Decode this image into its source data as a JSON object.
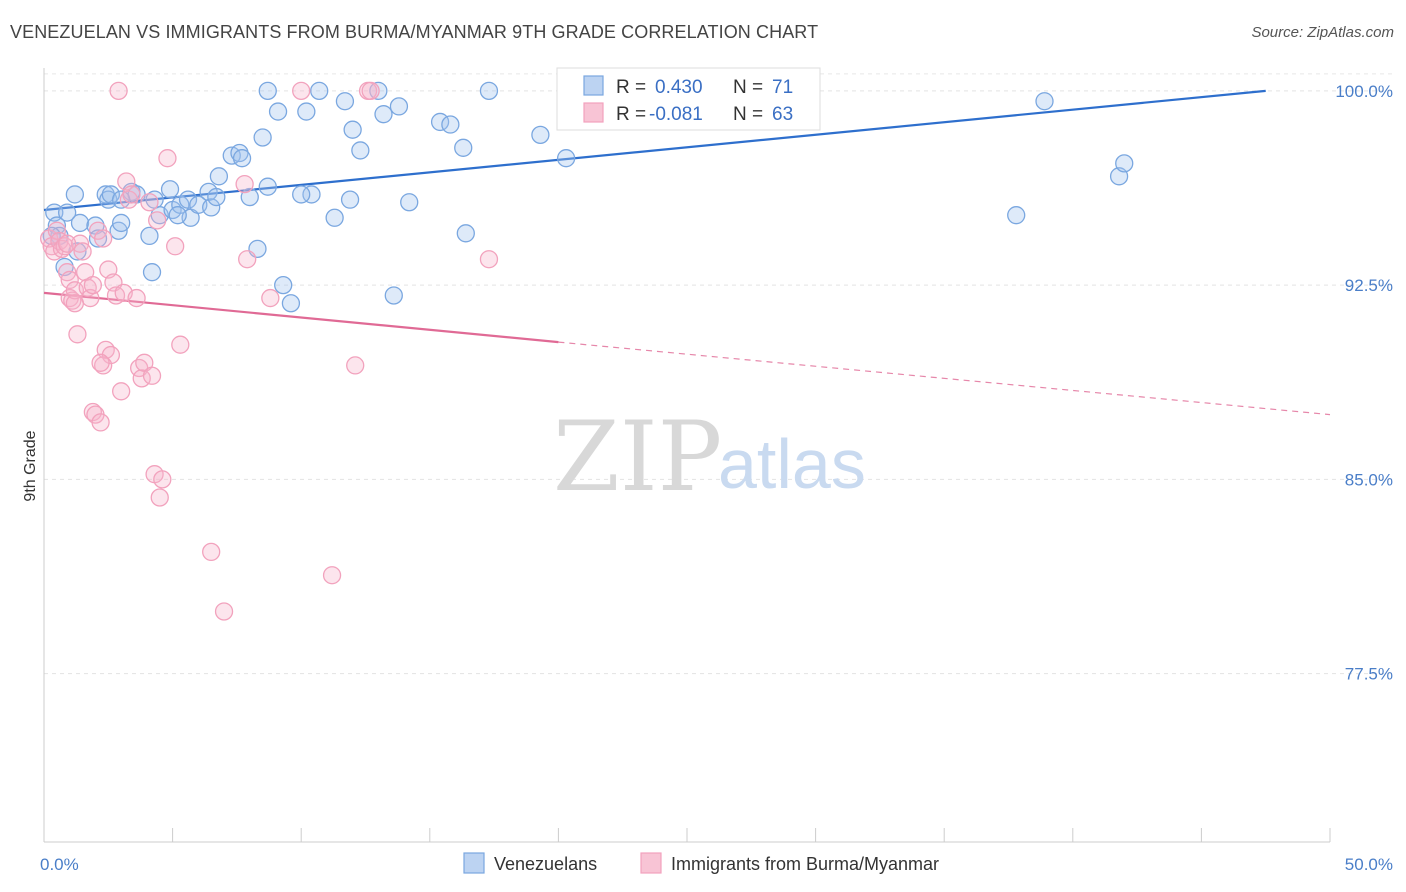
{
  "title": "VENEZUELAN VS IMMIGRANTS FROM BURMA/MYANMAR 9TH GRADE CORRELATION CHART",
  "source": "Source: ZipAtlas.com",
  "watermark": {
    "zip": "ZIP",
    "atlas": "atlas"
  },
  "chart_data": {
    "type": "scatter",
    "title": "VENEZUELAN VS IMMIGRANTS FROM BURMA/MYANMAR 9TH GRADE CORRELATION CHART",
    "xlabel": "",
    "ylabel": "9th Grade",
    "xlim": [
      0,
      50
    ],
    "ylim": [
      71.0,
      101.5
    ],
    "x_tick_labels": [
      "0.0%",
      "50.0%"
    ],
    "y_ticks": [
      77.5,
      85.0,
      92.5,
      100.0
    ],
    "y_tick_labels": [
      "77.5%",
      "85.0%",
      "92.5%",
      "100.0%"
    ],
    "grid": true,
    "legend": {
      "placement": "top-center",
      "rows": [
        {
          "r_label": "R =",
          "r_value": "0.430",
          "n_label": "N =",
          "n_value": "71"
        },
        {
          "r_label": "R =",
          "r_value": "-0.081",
          "n_label": "N =",
          "n_value": "63"
        }
      ]
    },
    "series": [
      {
        "name": "Venezuelans",
        "color": "#7aa7e0",
        "line_color": "#2e6fcd",
        "trend": {
          "x0": 0,
          "y0": 95.4,
          "x1": 47.5,
          "y1": 100.0,
          "dashed_to": null
        },
        "points": [
          [
            0.4,
            95.3
          ],
          [
            0.5,
            94.8
          ],
          [
            0.6,
            94.4
          ],
          [
            0.9,
            95.3
          ],
          [
            1.2,
            96.0
          ],
          [
            0.8,
            93.2
          ],
          [
            1.4,
            94.9
          ],
          [
            1.3,
            93.8
          ],
          [
            2.0,
            94.8
          ],
          [
            2.4,
            96.0
          ],
          [
            2.5,
            95.8
          ],
          [
            2.6,
            96.0
          ],
          [
            2.9,
            94.6
          ],
          [
            3.0,
            94.9
          ],
          [
            3.4,
            96.1
          ],
          [
            3.6,
            96.0
          ],
          [
            4.1,
            94.4
          ],
          [
            4.2,
            93.0
          ],
          [
            4.3,
            95.8
          ],
          [
            4.5,
            95.2
          ],
          [
            4.9,
            96.2
          ],
          [
            5.0,
            95.4
          ],
          [
            5.3,
            95.6
          ],
          [
            5.6,
            95.8
          ],
          [
            5.7,
            95.1
          ],
          [
            6.0,
            95.6
          ],
          [
            6.4,
            96.1
          ],
          [
            6.5,
            95.5
          ],
          [
            6.7,
            95.9
          ],
          [
            6.8,
            96.7
          ],
          [
            7.3,
            97.5
          ],
          [
            7.6,
            97.6
          ],
          [
            7.7,
            97.4
          ],
          [
            8.0,
            95.9
          ],
          [
            8.3,
            93.9
          ],
          [
            8.5,
            98.2
          ],
          [
            8.7,
            96.3
          ],
          [
            8.7,
            100.0
          ],
          [
            9.1,
            99.2
          ],
          [
            9.3,
            92.5
          ],
          [
            9.6,
            91.8
          ],
          [
            10.2,
            99.2
          ],
          [
            10.4,
            96.0
          ],
          [
            10.7,
            100.0
          ],
          [
            11.3,
            95.1
          ],
          [
            11.7,
            99.6
          ],
          [
            11.9,
            95.8
          ],
          [
            12.0,
            98.5
          ],
          [
            12.3,
            97.7
          ],
          [
            13.0,
            100.0
          ],
          [
            13.2,
            99.1
          ],
          [
            13.6,
            92.1
          ],
          [
            13.8,
            99.4
          ],
          [
            14.2,
            95.7
          ],
          [
            15.4,
            98.8
          ],
          [
            15.8,
            98.7
          ],
          [
            16.3,
            97.8
          ],
          [
            16.4,
            94.5
          ],
          [
            17.3,
            100.0
          ],
          [
            19.3,
            98.3
          ],
          [
            20.3,
            97.4
          ],
          [
            22.0,
            100.0
          ],
          [
            37.8,
            95.2
          ],
          [
            38.9,
            99.6
          ],
          [
            41.8,
            96.7
          ],
          [
            42.0,
            97.2
          ],
          [
            0.3,
            94.4
          ],
          [
            2.1,
            94.3
          ],
          [
            5.2,
            95.2
          ],
          [
            10.0,
            96.0
          ],
          [
            3.0,
            95.8
          ]
        ]
      },
      {
        "name": "Immigrants from Burma/Myanmar",
        "color": "#f2a2bd",
        "line_color": "#e06a95",
        "trend": {
          "x0": 0,
          "y0": 92.2,
          "x1": 20.0,
          "y1": 90.3,
          "dashed_to": {
            "x": 50.0,
            "y": 87.5
          }
        },
        "points": [
          [
            0.2,
            94.3
          ],
          [
            0.3,
            94.0
          ],
          [
            0.4,
            93.8
          ],
          [
            0.5,
            94.6
          ],
          [
            0.6,
            94.2
          ],
          [
            0.7,
            93.9
          ],
          [
            0.8,
            94.0
          ],
          [
            0.9,
            93.0
          ],
          [
            1.0,
            92.7
          ],
          [
            1.0,
            92.0
          ],
          [
            1.1,
            91.9
          ],
          [
            1.2,
            92.3
          ],
          [
            1.3,
            90.6
          ],
          [
            1.4,
            94.1
          ],
          [
            1.5,
            93.8
          ],
          [
            1.6,
            93.0
          ],
          [
            1.7,
            92.4
          ],
          [
            1.8,
            92.0
          ],
          [
            1.9,
            92.5
          ],
          [
            1.9,
            87.6
          ],
          [
            2.0,
            87.5
          ],
          [
            2.1,
            94.6
          ],
          [
            2.2,
            87.2
          ],
          [
            2.3,
            94.3
          ],
          [
            2.4,
            90.0
          ],
          [
            2.5,
            93.1
          ],
          [
            2.6,
            89.8
          ],
          [
            2.7,
            92.6
          ],
          [
            2.8,
            92.1
          ],
          [
            2.9,
            100.0
          ],
          [
            3.0,
            88.4
          ],
          [
            3.1,
            92.2
          ],
          [
            3.2,
            96.5
          ],
          [
            3.3,
            95.8
          ],
          [
            3.4,
            96.0
          ],
          [
            3.6,
            92.0
          ],
          [
            3.7,
            89.3
          ],
          [
            3.8,
            88.9
          ],
          [
            3.9,
            89.5
          ],
          [
            4.1,
            95.7
          ],
          [
            4.2,
            89.0
          ],
          [
            4.3,
            85.2
          ],
          [
            4.4,
            95.0
          ],
          [
            4.5,
            84.3
          ],
          [
            4.6,
            85.0
          ],
          [
            4.8,
            97.4
          ],
          [
            5.1,
            94.0
          ],
          [
            5.3,
            90.2
          ],
          [
            6.5,
            82.2
          ],
          [
            7.0,
            79.9
          ],
          [
            7.8,
            96.4
          ],
          [
            7.9,
            93.5
          ],
          [
            8.8,
            92.0
          ],
          [
            10.0,
            100.0
          ],
          [
            11.2,
            81.3
          ],
          [
            12.1,
            89.4
          ],
          [
            12.6,
            100.0
          ],
          [
            12.7,
            100.0
          ],
          [
            17.3,
            93.5
          ],
          [
            2.3,
            89.4
          ],
          [
            1.2,
            91.8
          ],
          [
            2.2,
            89.5
          ],
          [
            0.9,
            94.1
          ]
        ]
      }
    ]
  }
}
